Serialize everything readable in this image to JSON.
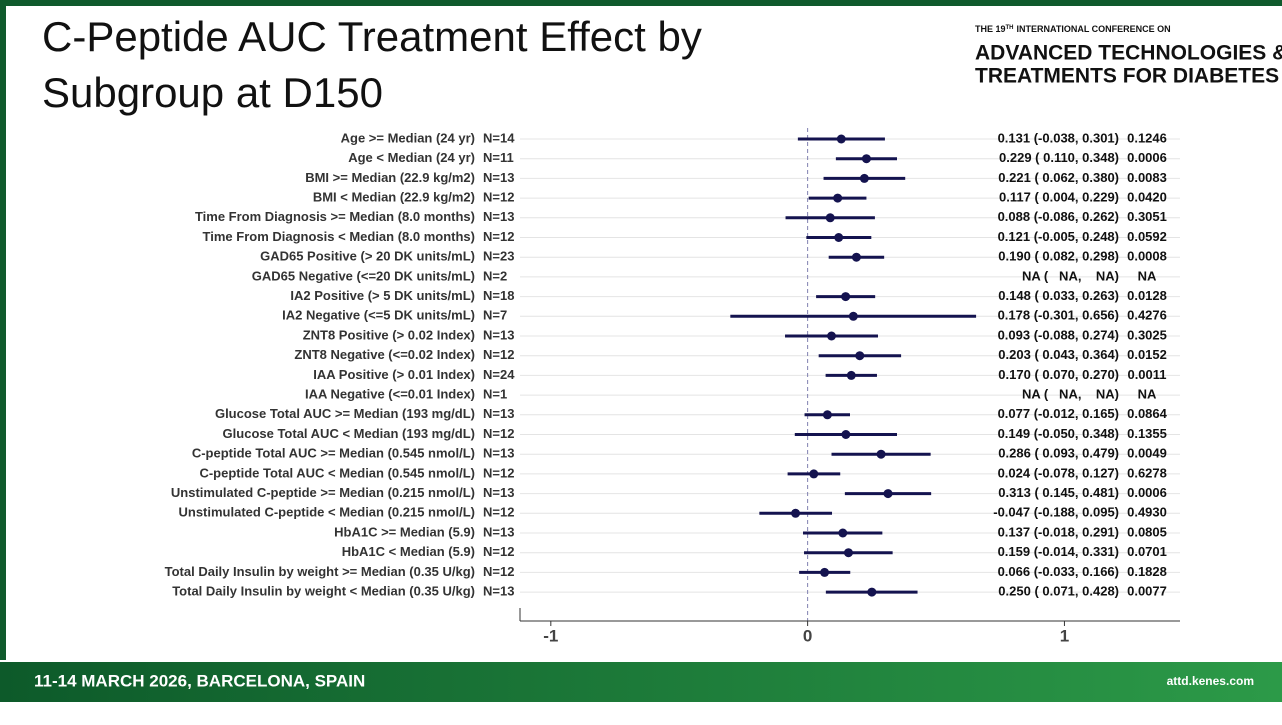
{
  "slide": {
    "title_lines": [
      "C-Peptide AUC Treatment Effect by",
      "Subgroup at D150"
    ],
    "logo_pre": "THE 19",
    "logo_sup": "TH",
    "logo_post": "INTERNATIONAL CONFERENCE ON",
    "logo_line1": "ADVANCED TECHNOLOGIES &",
    "logo_line2": "TREATMENTS FOR DIABETES",
    "footer_left": "11-14 MARCH 2026, BARCELONA, SPAIN",
    "footer_right": "attd.kenes.com"
  },
  "chart_data": {
    "type": "forest",
    "categories": [
      "Age >= Median (24 yr)",
      "Age < Median (24 yr)",
      "BMI >= Median (22.9 kg/m2)",
      "BMI < Median (22.9 kg/m2)",
      "Time From Diagnosis >= Median (8.0 months)",
      "Time From Diagnosis < Median (8.0 months)",
      "GAD65 Positive (> 20 DK units/mL)",
      "GAD65 Negative (<=20 DK units/mL)",
      "IA2 Positive (> 5 DK units/mL)",
      "IA2 Negative (<=5 DK units/mL)",
      "ZNT8 Positive (> 0.02 Index)",
      "ZNT8 Negative (<=0.02 Index)",
      "IAA Positive (> 0.01 Index)",
      "IAA Negative (<=0.01 Index)",
      "Glucose Total AUC >= Median (193 mg/dL)",
      "Glucose Total AUC < Median (193 mg/dL)",
      "C-peptide Total AUC >= Median (0.545 nmol/L)",
      "C-peptide Total AUC < Median (0.545 nmol/L)",
      "Unstimulated C-peptide >= Median (0.215 nmol/L)",
      "Unstimulated C-peptide < Median (0.215 nmol/L)",
      "HbA1C >= Median (5.9)",
      "HbA1C < Median (5.9)",
      "Total Daily Insulin by weight >= Median (0.35 U/kg)",
      "Total Daily Insulin by weight < Median (0.35 U/kg)"
    ],
    "n_labels": [
      "N=14",
      "N=11",
      "N=13",
      "N=12",
      "N=13",
      "N=12",
      "N=23",
      "N=2",
      "N=18",
      "N=7",
      "N=13",
      "N=12",
      "N=24",
      "N=1",
      "N=13",
      "N=12",
      "N=13",
      "N=12",
      "N=13",
      "N=12",
      "N=13",
      "N=12",
      "N=12",
      "N=13"
    ],
    "values": [
      0.131,
      0.229,
      0.221,
      0.117,
      0.088,
      0.121,
      0.19,
      null,
      0.148,
      0.178,
      0.093,
      0.203,
      0.17,
      null,
      0.077,
      0.149,
      0.286,
      0.024,
      0.313,
      -0.047,
      0.137,
      0.159,
      0.066,
      0.25
    ],
    "lower": [
      -0.038,
      0.11,
      0.062,
      0.004,
      -0.086,
      -0.005,
      0.082,
      null,
      0.033,
      -0.301,
      -0.088,
      0.043,
      0.07,
      null,
      -0.012,
      -0.05,
      0.093,
      -0.078,
      0.145,
      -0.188,
      -0.018,
      -0.014,
      -0.033,
      0.071
    ],
    "upper": [
      0.301,
      0.348,
      0.38,
      0.229,
      0.262,
      0.248,
      0.298,
      null,
      0.263,
      0.656,
      0.274,
      0.364,
      0.27,
      null,
      0.165,
      0.348,
      0.479,
      0.127,
      0.481,
      0.095,
      0.291,
      0.331,
      0.166,
      0.428
    ],
    "value_labels": [
      "0.131 (-0.038, 0.301)",
      "0.229 ( 0.110, 0.348)",
      "0.221 ( 0.062, 0.380)",
      "0.117 ( 0.004, 0.229)",
      "0.088 (-0.086, 0.262)",
      "0.121 (-0.005, 0.248)",
      "0.190 ( 0.082, 0.298)",
      "NA (   NA,    NA)",
      "0.148 ( 0.033, 0.263)",
      "0.178 (-0.301, 0.656)",
      "0.093 (-0.088, 0.274)",
      "0.203 ( 0.043, 0.364)",
      "0.170 ( 0.070, 0.270)",
      "NA (   NA,    NA)",
      "0.077 (-0.012, 0.165)",
      "0.149 (-0.050, 0.348)",
      "0.286 ( 0.093, 0.479)",
      "0.024 (-0.078, 0.127)",
      "0.313 ( 0.145, 0.481)",
      "-0.047 (-0.188, 0.095)",
      "0.137 (-0.018, 0.291)",
      "0.159 (-0.014, 0.331)",
      "0.066 (-0.033, 0.166)",
      "0.250 ( 0.071, 0.428)"
    ],
    "p_labels": [
      "0.1246",
      "0.0006",
      "0.0083",
      "0.0420",
      "0.3051",
      "0.0592",
      "0.0008",
      "NA",
      "0.0128",
      "0.4276",
      "0.3025",
      "0.0152",
      "0.0011",
      "NA",
      "0.0864",
      "0.1355",
      "0.0049",
      "0.6278",
      "0.0006",
      "0.4930",
      "0.0805",
      "0.0701",
      "0.1828",
      "0.0077"
    ],
    "xlim": [
      -1.12,
      1.45
    ],
    "xticks": [
      -1,
      0,
      1
    ],
    "ref_line": 0,
    "color": "#14134f",
    "grid": true
  }
}
